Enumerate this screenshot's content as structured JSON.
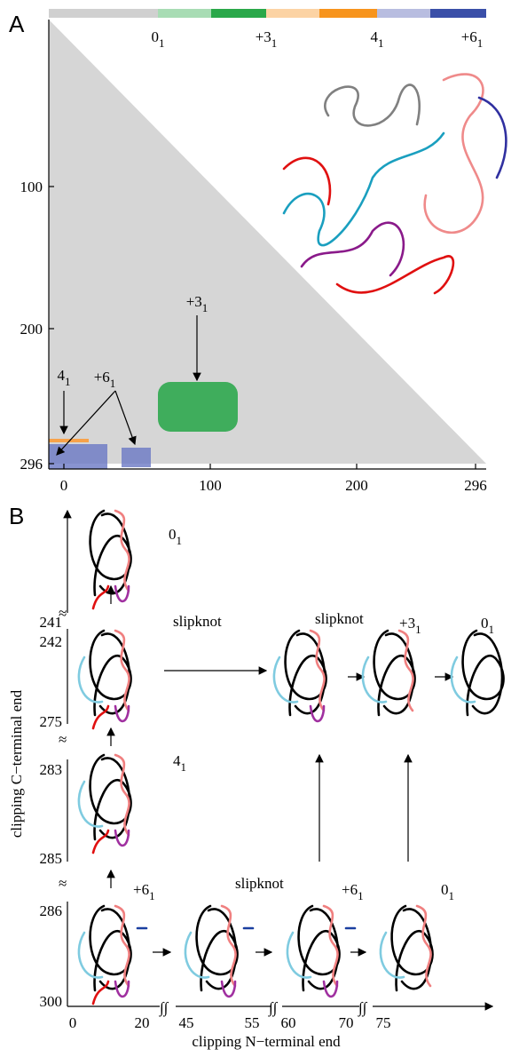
{
  "panel_a": {
    "label": "A",
    "colorbar": [
      {
        "main": "0",
        "sub": "1"
      },
      {
        "main": "+3",
        "sub": "1"
      },
      {
        "main": "4",
        "sub": "1"
      },
      {
        "main": "+6",
        "sub": "1"
      }
    ],
    "y_ticks": [
      100,
      200,
      296
    ],
    "x_ticks": [
      0,
      100,
      200,
      296
    ],
    "annotations": [
      {
        "main": "+3",
        "sub": "1"
      },
      {
        "main": "4",
        "sub": "1"
      },
      {
        "main": "+6",
        "sub": "1"
      }
    ]
  },
  "panel_b": {
    "label": "B",
    "y_axis_label": "clipping C−terminal end",
    "x_axis_label": "clipping N−terminal end",
    "y_ticks": [
      241,
      242,
      275,
      283,
      285,
      286,
      300
    ],
    "x_ticks": [
      0,
      20,
      45,
      55,
      60,
      70,
      75
    ],
    "knot_labels": [
      {
        "main": "0",
        "sub": "1"
      },
      "slipknot",
      "slipknot",
      {
        "main": "+3",
        "sub": "1"
      },
      {
        "main": "0",
        "sub": "1"
      },
      {
        "main": "4",
        "sub": "1"
      },
      {
        "main": "+6",
        "sub": "1"
      },
      "slipknot",
      {
        "main": "+6",
        "sub": "1"
      },
      {
        "main": "0",
        "sub": "1"
      }
    ]
  }
}
